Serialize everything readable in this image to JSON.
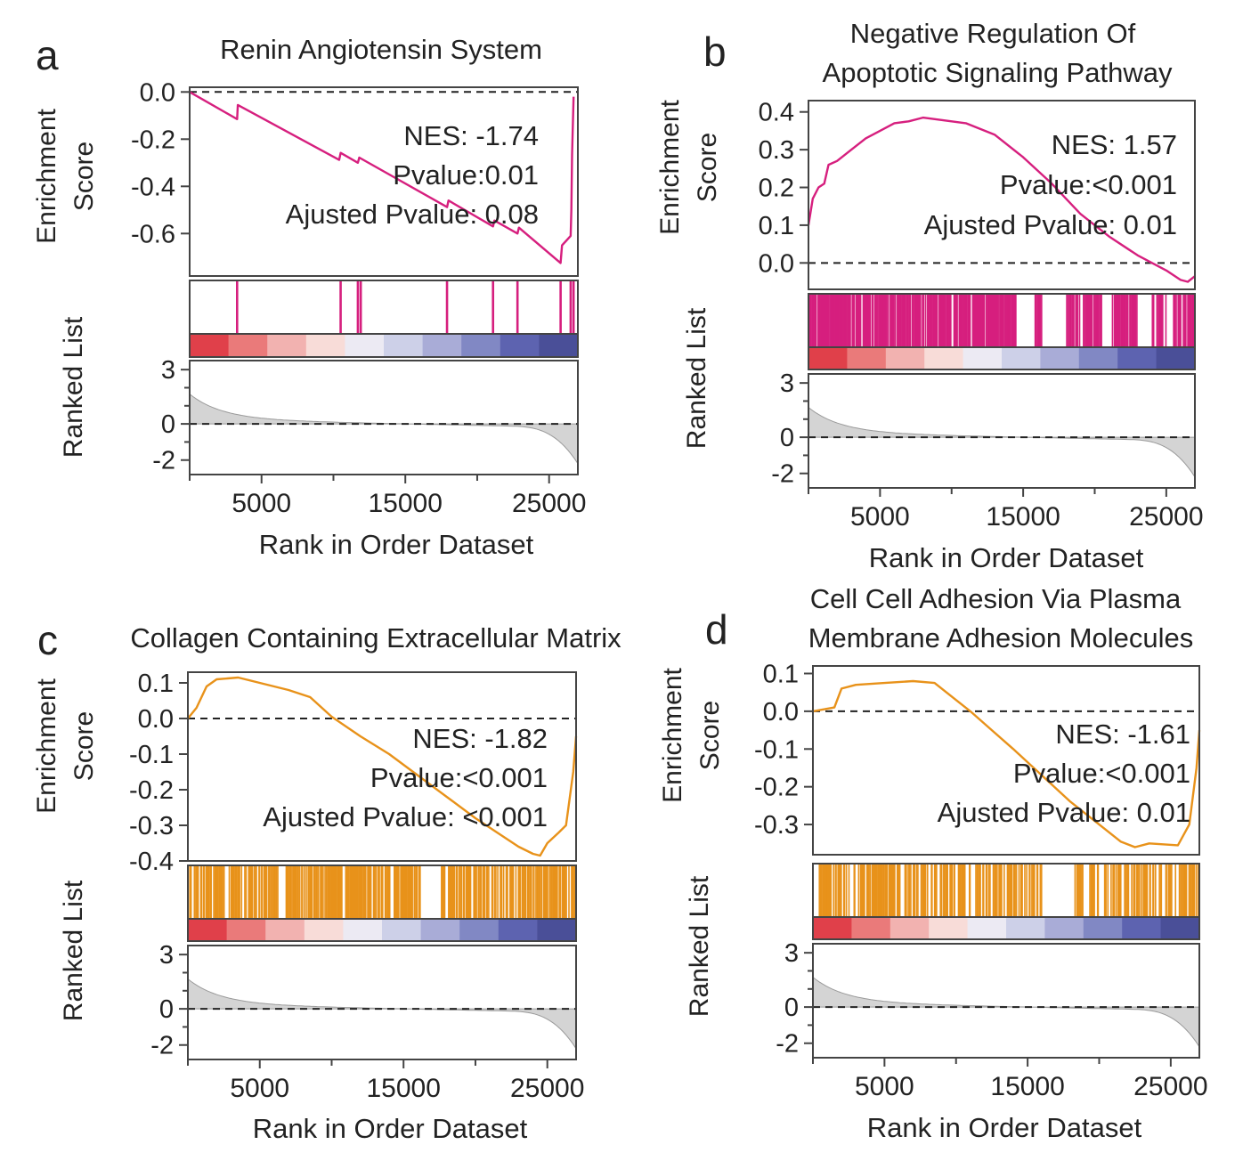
{
  "figure": {
    "x_label": "Rank in Order Dataset",
    "es_label_line1": "Enrichment",
    "es_label_line2": "Score",
    "ranked_label": "Ranked List",
    "x_max": 27000,
    "x_ticks": [
      5000,
      15000,
      25000
    ],
    "x_tick_labels": [
      "5000",
      "15000",
      "25000"
    ],
    "ranked_ticks": [
      3,
      0,
      -2
    ],
    "ranked_tick_labels": [
      "3",
      "0",
      "-2"
    ]
  },
  "chart_data": [
    {
      "type": "line",
      "panel": "a",
      "title": [
        "Renin Angiotensin System"
      ],
      "color": "#d61f7e",
      "ylim": [
        -0.78,
        0.02
      ],
      "y_ticks": [
        0.0,
        -0.2,
        -0.4,
        -0.6
      ],
      "y_tick_labels": [
        "0.0",
        "-0.2",
        "-0.4",
        "-0.6"
      ],
      "curve": [
        [
          0,
          0
        ],
        [
          3300,
          -0.115
        ],
        [
          3350,
          -0.055
        ],
        [
          10400,
          -0.288
        ],
        [
          10500,
          -0.258
        ],
        [
          11700,
          -0.3
        ],
        [
          11800,
          -0.278
        ],
        [
          17900,
          -0.488
        ],
        [
          18000,
          -0.46
        ],
        [
          21100,
          -0.57
        ],
        [
          21200,
          -0.545
        ],
        [
          22800,
          -0.6
        ],
        [
          22900,
          -0.575
        ],
        [
          25800,
          -0.725
        ],
        [
          25900,
          -0.65
        ],
        [
          26500,
          -0.61
        ],
        [
          26550,
          -0.5
        ],
        [
          26600,
          -0.265
        ],
        [
          26700,
          -0.02
        ]
      ],
      "hits": [
        3300,
        10500,
        11700,
        11900,
        17900,
        21100,
        22800,
        25800,
        26500,
        26700
      ],
      "stats": {
        "nes": "NES: -1.74",
        "pvalue": "Pvalue:0.01",
        "adj": "Ajusted Pvalue: 0.08"
      }
    },
    {
      "type": "line",
      "panel": "b",
      "title": [
        "Negative Regulation Of",
        "Apoptotic Signaling Pathway"
      ],
      "color": "#d61f7e",
      "ylim": [
        -0.07,
        0.43
      ],
      "y_ticks": [
        0.4,
        0.3,
        0.2,
        0.1,
        0.0
      ],
      "y_tick_labels": [
        "0.4",
        "0.3",
        "0.2",
        "0.1",
        "0.0"
      ],
      "curve": [
        [
          0,
          0.1
        ],
        [
          300,
          0.17
        ],
        [
          700,
          0.2
        ],
        [
          1100,
          0.21
        ],
        [
          1400,
          0.26
        ],
        [
          2000,
          0.27
        ],
        [
          3000,
          0.3
        ],
        [
          4000,
          0.33
        ],
        [
          5000,
          0.35
        ],
        [
          6000,
          0.37
        ],
        [
          7000,
          0.375
        ],
        [
          8000,
          0.385
        ],
        [
          9000,
          0.38
        ],
        [
          11000,
          0.37
        ],
        [
          13000,
          0.34
        ],
        [
          15000,
          0.28
        ],
        [
          17000,
          0.21
        ],
        [
          19000,
          0.13
        ],
        [
          21000,
          0.07
        ],
        [
          23000,
          0.02
        ],
        [
          25000,
          -0.02
        ],
        [
          26000,
          -0.045
        ],
        [
          26500,
          -0.05
        ],
        [
          27000,
          -0.035
        ]
      ],
      "hit_density": 0.72,
      "hit_gaps": [
        [
          14500,
          15800
        ],
        [
          16300,
          18000
        ],
        [
          20500,
          21200
        ],
        [
          23000,
          24000
        ],
        [
          25000,
          25500
        ]
      ],
      "stats": {
        "nes": "NES: 1.57",
        "pvalue": "Pvalue:<0.001",
        "adj": "Ajusted Pvalue: 0.01"
      }
    },
    {
      "type": "line",
      "panel": "c",
      "title": [
        "Collagen Containing Extracellular Matrix"
      ],
      "color": "#e8921a",
      "ylim": [
        -0.4,
        0.13
      ],
      "y_ticks": [
        0.1,
        0.0,
        -0.1,
        -0.2,
        -0.3,
        -0.4
      ],
      "y_tick_labels": [
        "0.1",
        "0.0",
        "-0.1",
        "-0.2",
        "-0.3",
        "-0.4"
      ],
      "curve": [
        [
          0,
          0.0
        ],
        [
          600,
          0.03
        ],
        [
          1300,
          0.09
        ],
        [
          2000,
          0.11
        ],
        [
          3500,
          0.115
        ],
        [
          5000,
          0.1
        ],
        [
          7000,
          0.08
        ],
        [
          8500,
          0.06
        ],
        [
          10000,
          0.005
        ],
        [
          12000,
          -0.05
        ],
        [
          14000,
          -0.1
        ],
        [
          16000,
          -0.16
        ],
        [
          18000,
          -0.22
        ],
        [
          20000,
          -0.28
        ],
        [
          21500,
          -0.32
        ],
        [
          23000,
          -0.36
        ],
        [
          24000,
          -0.38
        ],
        [
          24500,
          -0.385
        ],
        [
          25000,
          -0.35
        ],
        [
          25800,
          -0.32
        ],
        [
          26300,
          -0.3
        ],
        [
          26800,
          -0.15
        ],
        [
          27000,
          -0.05
        ]
      ],
      "hit_density": 0.55,
      "hit_gaps": [
        [
          16200,
          17600
        ],
        [
          6300,
          6800
        ]
      ],
      "stats": {
        "nes": "NES: -1.82",
        "pvalue": "Pvalue:<0.001",
        "adj": "Ajusted Pvalue: <0.001"
      }
    },
    {
      "type": "line",
      "panel": "d",
      "title": [
        "Cell Cell Adhesion Via Plasma",
        "Membrane Adhesion Molecules"
      ],
      "color": "#e8921a",
      "ylim": [
        -0.38,
        0.12
      ],
      "y_ticks": [
        0.1,
        0.0,
        -0.1,
        -0.2,
        -0.3
      ],
      "y_tick_labels": [
        "0.1",
        "0.0",
        "-0.1",
        "-0.2",
        "-0.3"
      ],
      "curve": [
        [
          0,
          0.0
        ],
        [
          1500,
          0.01
        ],
        [
          2000,
          0.06
        ],
        [
          3000,
          0.07
        ],
        [
          5000,
          0.075
        ],
        [
          7000,
          0.08
        ],
        [
          8500,
          0.075
        ],
        [
          10000,
          0.03
        ],
        [
          11000,
          0.0
        ],
        [
          12500,
          -0.05
        ],
        [
          14000,
          -0.1
        ],
        [
          16000,
          -0.17
        ],
        [
          18000,
          -0.24
        ],
        [
          20000,
          -0.3
        ],
        [
          21500,
          -0.345
        ],
        [
          22500,
          -0.36
        ],
        [
          23500,
          -0.35
        ],
        [
          25500,
          -0.355
        ],
        [
          26300,
          -0.3
        ],
        [
          26800,
          -0.15
        ],
        [
          27000,
          -0.05
        ]
      ],
      "hit_density": 0.45,
      "hit_gaps": [
        [
          16000,
          18200
        ],
        [
          0,
          300
        ]
      ],
      "stats": {
        "nes": "NES: -1.61",
        "pvalue": "Pvalue:<0.001",
        "adj": "Ajusted Pvalue: 0.01"
      }
    }
  ]
}
